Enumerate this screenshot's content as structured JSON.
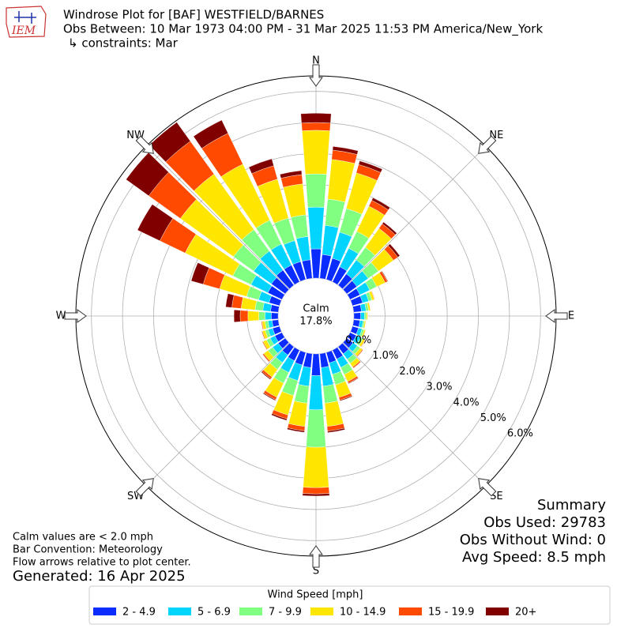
{
  "chart_data": {
    "type": "windrose",
    "logo_text": "IEM",
    "title": "Windrose Plot for [BAF] WESTFIELD/BARNES",
    "subtitle": "Obs Between: 10 Mar 1973 04:00 PM - 31 Mar 2025 11:53 PM America/New_York",
    "constraints": "↳ constraints: Mar",
    "calm_label": "Calm",
    "calm_percent": "17.8%",
    "x": [
      0,
      10,
      20,
      30,
      40,
      50,
      60,
      70,
      80,
      90,
      100,
      110,
      120,
      130,
      140,
      150,
      160,
      170,
      180,
      190,
      200,
      210,
      220,
      230,
      240,
      250,
      260,
      270,
      280,
      290,
      300,
      310,
      320,
      330,
      340,
      350
    ],
    "xticks": [
      {
        "value": 0,
        "label": "N"
      },
      {
        "value": 45,
        "label": "NE"
      },
      {
        "value": 90,
        "label": "E"
      },
      {
        "value": 135,
        "label": "SE"
      },
      {
        "value": 180,
        "label": "S"
      },
      {
        "value": 225,
        "label": "SW"
      },
      {
        "value": 270,
        "label": "W"
      },
      {
        "value": 315,
        "label": "NW"
      }
    ],
    "ylim": [
      0,
      6.5
    ],
    "yticks": [
      {
        "value": 0,
        "label": "0.0%"
      },
      {
        "value": 1,
        "label": "1.0%"
      },
      {
        "value": 2,
        "label": "2.0%"
      },
      {
        "value": 3,
        "label": "3.0%"
      },
      {
        "value": 4,
        "label": "4.0%"
      },
      {
        "value": 5,
        "label": "5.0%"
      },
      {
        "value": 6,
        "label": "6.0%"
      }
    ],
    "grid": true,
    "legend_title": "Wind Speed [mph]",
    "legend_position": "bottom",
    "series": [
      {
        "name": "2 - 4.9",
        "color": "#0a2cff",
        "values": [
          0.94,
          0.77,
          0.71,
          0.54,
          0.45,
          0.4,
          0.35,
          0.34,
          0.25,
          0.22,
          0.2,
          0.2,
          0.22,
          0.25,
          0.28,
          0.32,
          0.35,
          0.45,
          0.7,
          0.45,
          0.42,
          0.38,
          0.33,
          0.28,
          0.25,
          0.23,
          0.2,
          0.22,
          0.25,
          0.35,
          0.5,
          0.55,
          0.6,
          0.6,
          0.6,
          0.6
        ]
      },
      {
        "name": "5 - 6.9",
        "color": "#00d4ff",
        "values": [
          1.34,
          0.94,
          0.87,
          0.66,
          0.55,
          0.45,
          0.35,
          0.2,
          0.15,
          0.12,
          0.1,
          0.12,
          0.15,
          0.17,
          0.22,
          0.3,
          0.38,
          0.6,
          1.1,
          0.6,
          0.52,
          0.42,
          0.3,
          0.22,
          0.17,
          0.15,
          0.13,
          0.2,
          0.25,
          0.35,
          0.6,
          0.7,
          0.75,
          0.75,
          0.7,
          0.75
        ]
      },
      {
        "name": "7 - 9.9",
        "color": "#80ff80",
        "values": [
          1.07,
          0.85,
          0.79,
          0.6,
          0.5,
          0.4,
          0.25,
          0.11,
          0.08,
          0.06,
          0.05,
          0.07,
          0.09,
          0.11,
          0.16,
          0.25,
          0.35,
          0.55,
          1.2,
          0.55,
          0.5,
          0.38,
          0.27,
          0.18,
          0.13,
          0.1,
          0.1,
          0.2,
          0.25,
          0.4,
          0.65,
          0.8,
          0.85,
          0.85,
          0.75,
          0.7
        ]
      },
      {
        "name": "10 - 14.9",
        "color": "#ffe600",
        "values": [
          1.4,
          1.28,
          1.19,
          0.9,
          0.75,
          0.6,
          0.3,
          0.08,
          0.06,
          0.04,
          0.04,
          0.05,
          0.07,
          0.09,
          0.14,
          0.25,
          0.42,
          0.75,
          1.3,
          0.75,
          0.65,
          0.5,
          0.3,
          0.17,
          0.12,
          0.09,
          0.09,
          0.35,
          0.45,
          0.9,
          1.7,
          2.1,
          2.2,
          2.0,
          1.3,
          1.0
        ]
      },
      {
        "name": "15 - 19.9",
        "color": "#ff4a00",
        "values": [
          0.25,
          0.3,
          0.28,
          0.21,
          0.18,
          0.17,
          0.08,
          0.02,
          0.01,
          0.01,
          0.01,
          0.01,
          0.02,
          0.03,
          0.04,
          0.06,
          0.09,
          0.15,
          0.2,
          0.14,
          0.13,
          0.09,
          0.07,
          0.04,
          0.03,
          0.03,
          0.03,
          0.25,
          0.3,
          0.55,
          0.9,
          1.25,
          1.3,
          1.1,
          0.45,
          0.3
        ]
      },
      {
        "name": "20+",
        "color": "#800000",
        "values": [
          0.3,
          0.12,
          0.12,
          0.09,
          0.07,
          0.08,
          0.02,
          0,
          0,
          0,
          0,
          0,
          0,
          0,
          0.01,
          0.02,
          0.03,
          0.05,
          0.07,
          0.05,
          0.05,
          0.03,
          0.03,
          0.01,
          0,
          0,
          0,
          0.2,
          0.2,
          0.4,
          0.8,
          0.9,
          0.75,
          0.47,
          0.23,
          0.13
        ]
      }
    ],
    "summary_title": "Summary",
    "summary_lines": [
      "Obs Used: 29783",
      "Obs Without Wind: 0",
      "Avg Speed: 8.5 mph"
    ],
    "notes": [
      "Calm values are < 2.0 mph",
      "Bar Convention: Meteorology",
      "Flow arrows relative to plot center."
    ],
    "generated": "Generated: 16 Apr 2025"
  }
}
